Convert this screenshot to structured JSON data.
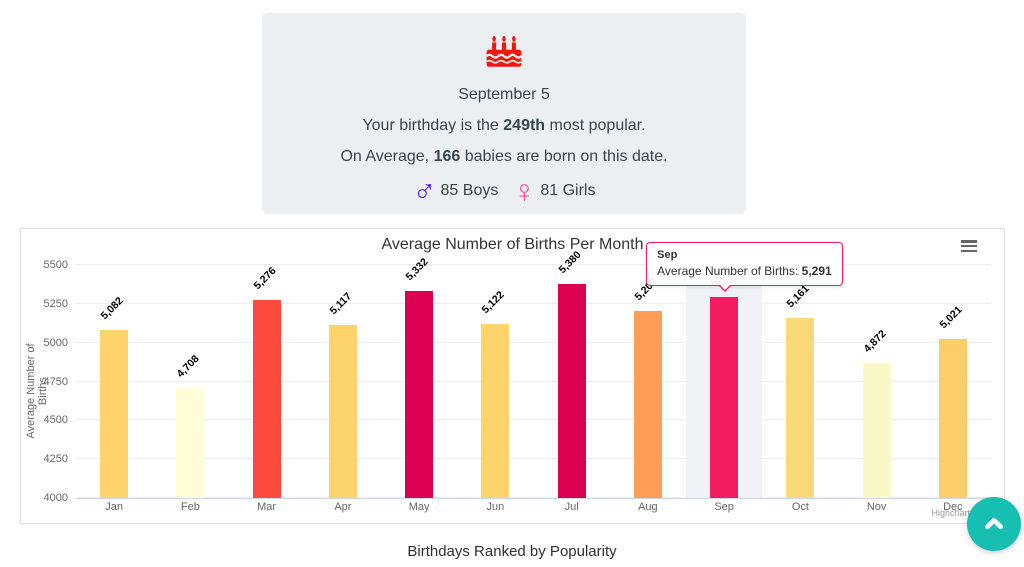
{
  "card": {
    "icon": "birthday-cake-icon",
    "icon_color": "#EC1A0D",
    "date": "September 5",
    "popularity": {
      "prefix": "Your birthday is the ",
      "rank": "249th",
      "suffix": " most popular."
    },
    "average": {
      "prefix": "On Average, ",
      "count": "166",
      "suffix": " babies are born on this date."
    },
    "boys": {
      "symbol": "♂",
      "color": "#5B21E8",
      "label": "85 Boys"
    },
    "girls": {
      "symbol": "♀",
      "color": "#F553B0",
      "label": "81 Girls"
    }
  },
  "chart_data": {
    "type": "bar",
    "title": "Average Number of Births Per Month",
    "categories": [
      "Jan",
      "Feb",
      "Mar",
      "Apr",
      "May",
      "Jun",
      "Jul",
      "Aug",
      "Sep",
      "Oct",
      "Nov",
      "Dec"
    ],
    "values": [
      5082,
      4708,
      5276,
      5117,
      5332,
      5122,
      5380,
      5202,
      5291,
      5161,
      4872,
      5021
    ],
    "value_labels": [
      "5,082",
      "4,708",
      "5,276",
      "5,117",
      "5,332",
      "5,122",
      "5,380",
      "5,202",
      "5,291",
      "5,161",
      "4,872",
      "5,021"
    ],
    "bar_colors": [
      "#FDD36B",
      "#FFFCD6",
      "#FB4B3E",
      "#FDD36B",
      "#DB0050",
      "#FDD36B",
      "#DB0050",
      "#FF9D57",
      "#F41C60",
      "#FBD878",
      "#FAF8C6",
      "#FCCD68"
    ],
    "xlabel": "",
    "ylabel": "Average Number of Births",
    "ylim": [
      4000,
      5500
    ],
    "yticks": [
      4000,
      4250,
      4500,
      4750,
      5000,
      5250,
      5500
    ],
    "grid": true,
    "legend": false,
    "highlight_index": 8,
    "tooltip": {
      "category": "Sep",
      "label": "Average Number of Births: ",
      "value": "5,291",
      "border_color": "#F41C60"
    },
    "credits": "Highcharts.com"
  },
  "caption": "Birthdays Ranked by Popularity",
  "fab": {
    "icon": "chevron-up-icon",
    "color": "#17BEB2"
  }
}
